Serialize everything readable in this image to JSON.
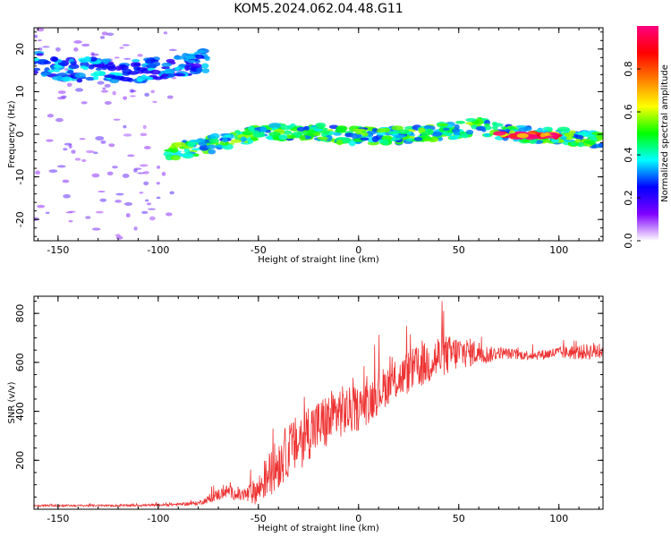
{
  "figure": {
    "title": "KOM5.2024.062.04.48.G11"
  },
  "chart_data": [
    {
      "type": "heatmap",
      "name": "spectrogram",
      "title": "KOM5.2024.062.04.48.G11",
      "xlabel": "Height of straight line (km)",
      "ylabel": "Frequency (Hz)",
      "xlim": [
        -162,
        122
      ],
      "ylim": [
        -25,
        25
      ],
      "xticks": [
        -150,
        -100,
        -50,
        0,
        50,
        100
      ],
      "yticks": [
        -20,
        -10,
        0,
        10,
        20
      ],
      "colorbar": {
        "label": "Normalized spectral amplitude",
        "range": [
          0,
          1
        ],
        "ticks": [
          "0.0",
          "0.2",
          "0.4",
          "0.6",
          "0.8"
        ],
        "colormap": [
          "#ffffff",
          "#7f00ff",
          "#0000ff",
          "#00ffff",
          "#00ff00",
          "#ffff00",
          "#ff7f00",
          "#ff0000",
          "#ff0080"
        ]
      },
      "ridges": [
        {
          "segment": "upper-band",
          "points": [
            [
              -162,
              17
            ],
            [
              -150,
              15.5
            ],
            [
              -140,
              15
            ],
            [
              -130,
              15.5
            ],
            [
              -120,
              14.5
            ],
            [
              -110,
              15
            ],
            [
              -100,
              15.5
            ],
            [
              -90,
              16
            ],
            [
              -80,
              17
            ],
            [
              -75,
              17.5
            ]
          ],
          "amplitude": 0.3
        },
        {
          "segment": "main-trace",
          "points": [
            [
              -95,
              -4.5
            ],
            [
              -85,
              -3.5
            ],
            [
              -75,
              -2.5
            ],
            [
              -65,
              -1.5
            ],
            [
              -55,
              -0.5
            ],
            [
              -45,
              0.5
            ],
            [
              -35,
              0.5
            ],
            [
              -25,
              0.5
            ],
            [
              -15,
              0.3
            ],
            [
              -5,
              -0.5
            ],
            [
              0,
              -0.2
            ],
            [
              10,
              -0.5
            ],
            [
              20,
              -0.3
            ],
            [
              30,
              0
            ],
            [
              40,
              0.5
            ],
            [
              50,
              1
            ],
            [
              55,
              1.5
            ],
            [
              60,
              2
            ],
            [
              65,
              1.5
            ],
            [
              70,
              0.5
            ],
            [
              80,
              0
            ],
            [
              90,
              -0.2
            ],
            [
              100,
              -0.2
            ],
            [
              110,
              -0.8
            ],
            [
              122,
              -1.5
            ]
          ],
          "amplitude": 0.45
        },
        {
          "segment": "peak",
          "points": [
            [
              70,
              0
            ],
            [
              80,
              -0.2
            ],
            [
              90,
              -0.3
            ],
            [
              100,
              -0.3
            ]
          ],
          "amplitude": 0.95
        }
      ]
    },
    {
      "type": "line",
      "name": "snr",
      "xlabel": "Height of straight line (km)",
      "ylabel": "SNR (v/v)",
      "xlim": [
        -162,
        122
      ],
      "ylim": [
        0,
        870
      ],
      "xticks": [
        -150,
        -100,
        -50,
        0,
        50,
        100
      ],
      "yticks": [
        200,
        400,
        600,
        800
      ],
      "color": "#ee3333",
      "envelope": {
        "x": [
          -162,
          -140,
          -120,
          -100,
          -90,
          -80,
          -75,
          -70,
          -65,
          -60,
          -55,
          -50,
          -45,
          -40,
          -35,
          -30,
          -25,
          -20,
          -15,
          -10,
          -5,
          0,
          5,
          10,
          15,
          20,
          25,
          30,
          35,
          40,
          45,
          50,
          55,
          60,
          65,
          70,
          80,
          90,
          100,
          110,
          122
        ],
        "y": [
          15,
          15,
          15,
          17,
          20,
          25,
          40,
          60,
          75,
          55,
          60,
          80,
          140,
          190,
          240,
          270,
          320,
          340,
          360,
          400,
          400,
          410,
          440,
          480,
          510,
          530,
          560,
          580,
          600,
          620,
          630,
          640,
          640,
          640,
          630,
          640,
          630,
          630,
          640,
          640,
          650
        ],
        "noise": [
          4,
          4,
          4,
          5,
          6,
          8,
          15,
          25,
          25,
          25,
          40,
          60,
          90,
          110,
          110,
          120,
          120,
          110,
          120,
          110,
          100,
          90,
          90,
          90,
          80,
          80,
          90,
          90,
          90,
          100,
          80,
          70,
          60,
          50,
          35,
          25,
          20,
          20,
          25,
          30,
          40
        ]
      }
    }
  ]
}
